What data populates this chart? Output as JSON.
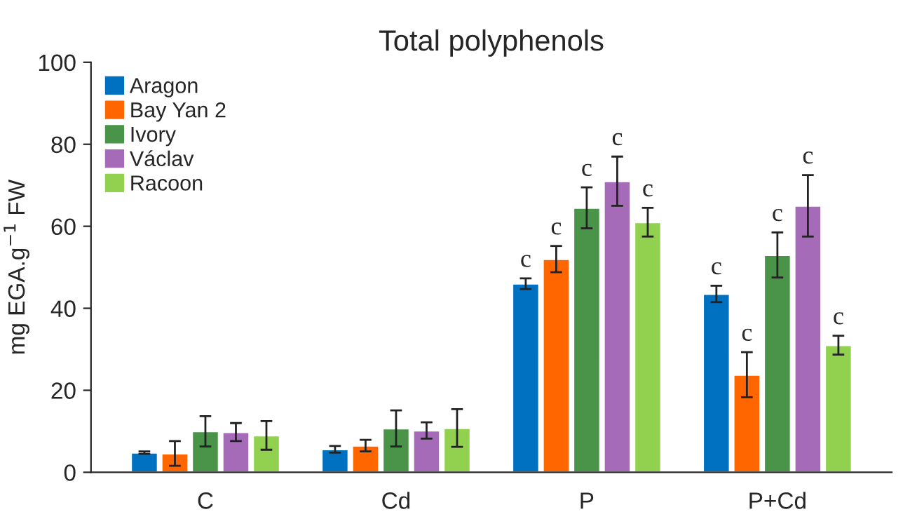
{
  "chart_data": {
    "type": "bar",
    "title": "Total polyphenols",
    "ylabel": "mg EGA.g$^{−1}$ FW",
    "categories": [
      "C",
      "Cd",
      "P",
      "P+Cd"
    ],
    "series": [
      {
        "name": "Aragon",
        "color": "#0070c0",
        "values": [
          4.8,
          5.6,
          46,
          43.5
        ],
        "errors": [
          0.3,
          0.8,
          1.3,
          2
        ],
        "value_labels": [
          null,
          null,
          "c",
          "c"
        ]
      },
      {
        "name": "Bay Yan 2",
        "color": "#ff6600",
        "values": [
          4.6,
          6.5,
          52,
          23.8
        ],
        "errors": [
          3,
          1.4,
          3.2,
          5.5
        ],
        "value_labels": [
          null,
          null,
          "c",
          "c"
        ]
      },
      {
        "name": "Ivory",
        "color": "#4a944a",
        "values": [
          10,
          10.7,
          64.5,
          53
        ],
        "errors": [
          3.7,
          4.4,
          5,
          5.5
        ],
        "value_labels": [
          null,
          null,
          "c",
          "c"
        ]
      },
      {
        "name": "Václav",
        "color": "#a66bb8",
        "values": [
          9.8,
          10.2,
          71,
          65
        ],
        "errors": [
          2.2,
          2,
          6,
          7.5
        ],
        "value_labels": [
          null,
          null,
          "c",
          "c"
        ]
      },
      {
        "name": "Racoon",
        "color": "#92d050",
        "values": [
          9,
          10.8,
          61,
          31
        ],
        "errors": [
          3.5,
          4.6,
          3.5,
          2.3
        ],
        "value_labels": [
          null,
          null,
          "c",
          "c"
        ]
      }
    ],
    "ylim": [
      0,
      100
    ],
    "yticks": [
      0,
      20,
      40,
      60,
      80,
      100
    ],
    "grid": false,
    "legend": "top left"
  }
}
